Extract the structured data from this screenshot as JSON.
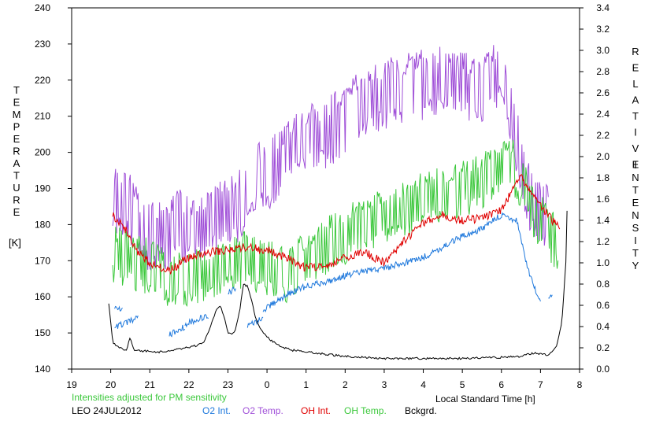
{
  "chart_data": {
    "type": "line",
    "title": "",
    "xlabel": "Local Standard Time [h]",
    "ylabel_left": "TEMPERATURE [K]",
    "ylabel_left_letters": [
      "T",
      "E",
      "M",
      "P",
      "E",
      "R",
      "A",
      "T",
      "U",
      "R",
      "E"
    ],
    "ylabel_left_unit": "[K]",
    "ylabel_right_letters_1": [
      "R",
      "E",
      "L",
      "A",
      "T",
      "I",
      "V",
      "E"
    ],
    "ylabel_right_letters_2": [
      "I",
      "N",
      "T",
      "E",
      "N",
      "S",
      "I",
      "T",
      "Y"
    ],
    "x_ticks": [
      19,
      20,
      21,
      22,
      23,
      0,
      1,
      2,
      3,
      4,
      5,
      6,
      7,
      8
    ],
    "x_range": [
      19,
      32
    ],
    "y_left_range": [
      140,
      240
    ],
    "y_left_ticks": [
      140,
      150,
      160,
      170,
      180,
      190,
      200,
      210,
      220,
      230,
      240
    ],
    "y_right_range": [
      0.0,
      3.4
    ],
    "y_right_ticks": [
      "0.0",
      "0.2",
      "0.4",
      "0.6",
      "0.8",
      "1.0",
      "1.2",
      "1.4",
      "1.6",
      "1.8",
      "2.0",
      "2.2",
      "2.4",
      "2.6",
      "2.8",
      "3.0",
      "3.2",
      "3.4"
    ],
    "annotation": "Intensities adjusted for PM sensitivity",
    "station_label": "LEO 24JUL2012",
    "legend": [
      {
        "name": "O2 Int.",
        "color": "#1e78dc"
      },
      {
        "name": "O2 Temp.",
        "color": "#a050d8"
      },
      {
        "name": "OH Int.",
        "color": "#e00000"
      },
      {
        "name": "OH Temp.",
        "color": "#3cc83c"
      },
      {
        "name": "Bckgrd.",
        "color": "#000000"
      }
    ],
    "series": [
      {
        "name": "O2 Temp.",
        "axis": "left",
        "noise": 10,
        "x": [
          20.05,
          20.4,
          20.8,
          21.3,
          21.7,
          22.2,
          22.5,
          22.9,
          23.2,
          23.7,
          24.3,
          24.8,
          25.5,
          26.0,
          26.5,
          27.0,
          27.5,
          28.0,
          28.5,
          29.0,
          29.5,
          30.0,
          30.3,
          30.6,
          30.9,
          31.2
        ],
        "y": [
          188,
          186,
          178,
          176,
          180,
          178,
          180,
          183,
          184,
          192,
          196,
          203,
          205,
          209,
          214,
          216,
          217,
          219,
          221,
          218,
          217,
          223,
          208,
          190,
          185,
          182
        ]
      },
      {
        "name": "OH Temp.",
        "axis": "left",
        "noise": 8,
        "x": [
          20.05,
          20.5,
          21.0,
          21.5,
          22.0,
          22.5,
          23.0,
          23.5,
          24.0,
          24.5,
          25.0,
          25.5,
          26.0,
          26.5,
          27.0,
          27.5,
          28.0,
          28.5,
          29.0,
          29.5,
          30.0,
          30.3,
          30.6,
          30.9,
          31.2,
          31.45
        ],
        "y": [
          172,
          170,
          168,
          165,
          165,
          167,
          170,
          170,
          168,
          166,
          170,
          174,
          177,
          180,
          182,
          184,
          187,
          188,
          190,
          192,
          196,
          196,
          190,
          182,
          178,
          175
        ]
      },
      {
        "name": "OH Int.",
        "axis": "right",
        "noise": 0.04,
        "x": [
          20.05,
          20.2,
          20.4,
          20.7,
          21.0,
          21.5,
          22.0,
          22.5,
          23.0,
          23.5,
          24.0,
          24.5,
          25.0,
          25.5,
          26.0,
          26.5,
          27.0,
          27.5,
          28.0,
          28.5,
          29.0,
          29.5,
          30.0,
          30.3,
          30.5,
          30.7,
          31.0,
          31.3,
          31.5
        ],
        "y": [
          1.45,
          1.4,
          1.3,
          1.1,
          1.0,
          0.92,
          1.05,
          1.1,
          1.12,
          1.15,
          1.12,
          1.05,
          0.95,
          0.98,
          1.05,
          1.1,
          1.0,
          1.2,
          1.38,
          1.45,
          1.4,
          1.42,
          1.5,
          1.7,
          1.8,
          1.7,
          1.55,
          1.4,
          1.35
        ]
      },
      {
        "name": "O2 Int.",
        "axis": "right",
        "noise": 0.03,
        "segments": [
          {
            "x": [
              20.1,
              20.3
            ],
            "y": [
              0.58,
              0.55
            ]
          },
          {
            "x": [
              20.1,
              20.3,
              20.5,
              20.7
            ],
            "y": [
              0.4,
              0.42,
              0.45,
              0.48
            ]
          },
          {
            "x": [
              21.5,
              21.7,
              21.9
            ],
            "y": [
              0.32,
              0.36,
              0.4
            ]
          },
          {
            "x": [
              21.9,
              22.2,
              22.5
            ],
            "y": [
              0.42,
              0.47,
              0.5
            ]
          },
          {
            "x": [
              23.0,
              23.2
            ],
            "y": [
              0.72,
              0.75
            ]
          },
          {
            "x": [
              23.5,
              23.9
            ],
            "y": [
              0.4,
              0.48
            ]
          },
          {
            "x": [
              23.9,
              24.5,
              25.0,
              25.5,
              26.0,
              26.5,
              27.0,
              27.5,
              28.0,
              28.5,
              29.0,
              29.5,
              29.8,
              30.0,
              30.2,
              30.4,
              30.6,
              30.8,
              31.0
            ],
            "y": [
              0.55,
              0.7,
              0.78,
              0.82,
              0.88,
              0.92,
              0.95,
              1.0,
              1.05,
              1.15,
              1.25,
              1.32,
              1.4,
              1.45,
              1.42,
              1.4,
              1.05,
              0.8,
              0.62
            ]
          },
          {
            "x": [
              31.2,
              31.3
            ],
            "y": [
              0.68,
              0.72
            ]
          }
        ]
      },
      {
        "name": "Bckgrd.",
        "axis": "right",
        "noise": 0.01,
        "x": [
          19.95,
          20.05,
          20.2,
          20.4,
          20.5,
          20.6,
          20.8,
          21.0,
          21.3,
          21.6,
          21.9,
          22.2,
          22.4,
          22.5,
          22.6,
          22.7,
          22.8,
          22.9,
          23.0,
          23.1,
          23.2,
          23.3,
          23.4,
          23.5,
          23.6,
          23.7,
          23.8,
          24.0,
          24.3,
          24.6,
          25.0,
          26.0,
          27.0,
          28.0,
          29.0,
          30.0,
          30.5,
          30.8,
          31.0,
          31.2,
          31.4,
          31.55,
          31.65,
          31.7
        ],
        "y": [
          0.62,
          0.25,
          0.2,
          0.18,
          0.3,
          0.18,
          0.17,
          0.17,
          0.16,
          0.18,
          0.2,
          0.22,
          0.26,
          0.35,
          0.45,
          0.55,
          0.6,
          0.5,
          0.35,
          0.32,
          0.38,
          0.55,
          0.8,
          0.78,
          0.65,
          0.5,
          0.4,
          0.3,
          0.22,
          0.18,
          0.16,
          0.12,
          0.1,
          0.1,
          0.1,
          0.11,
          0.12,
          0.15,
          0.14,
          0.13,
          0.2,
          0.45,
          1.0,
          1.8
        ]
      }
    ]
  }
}
